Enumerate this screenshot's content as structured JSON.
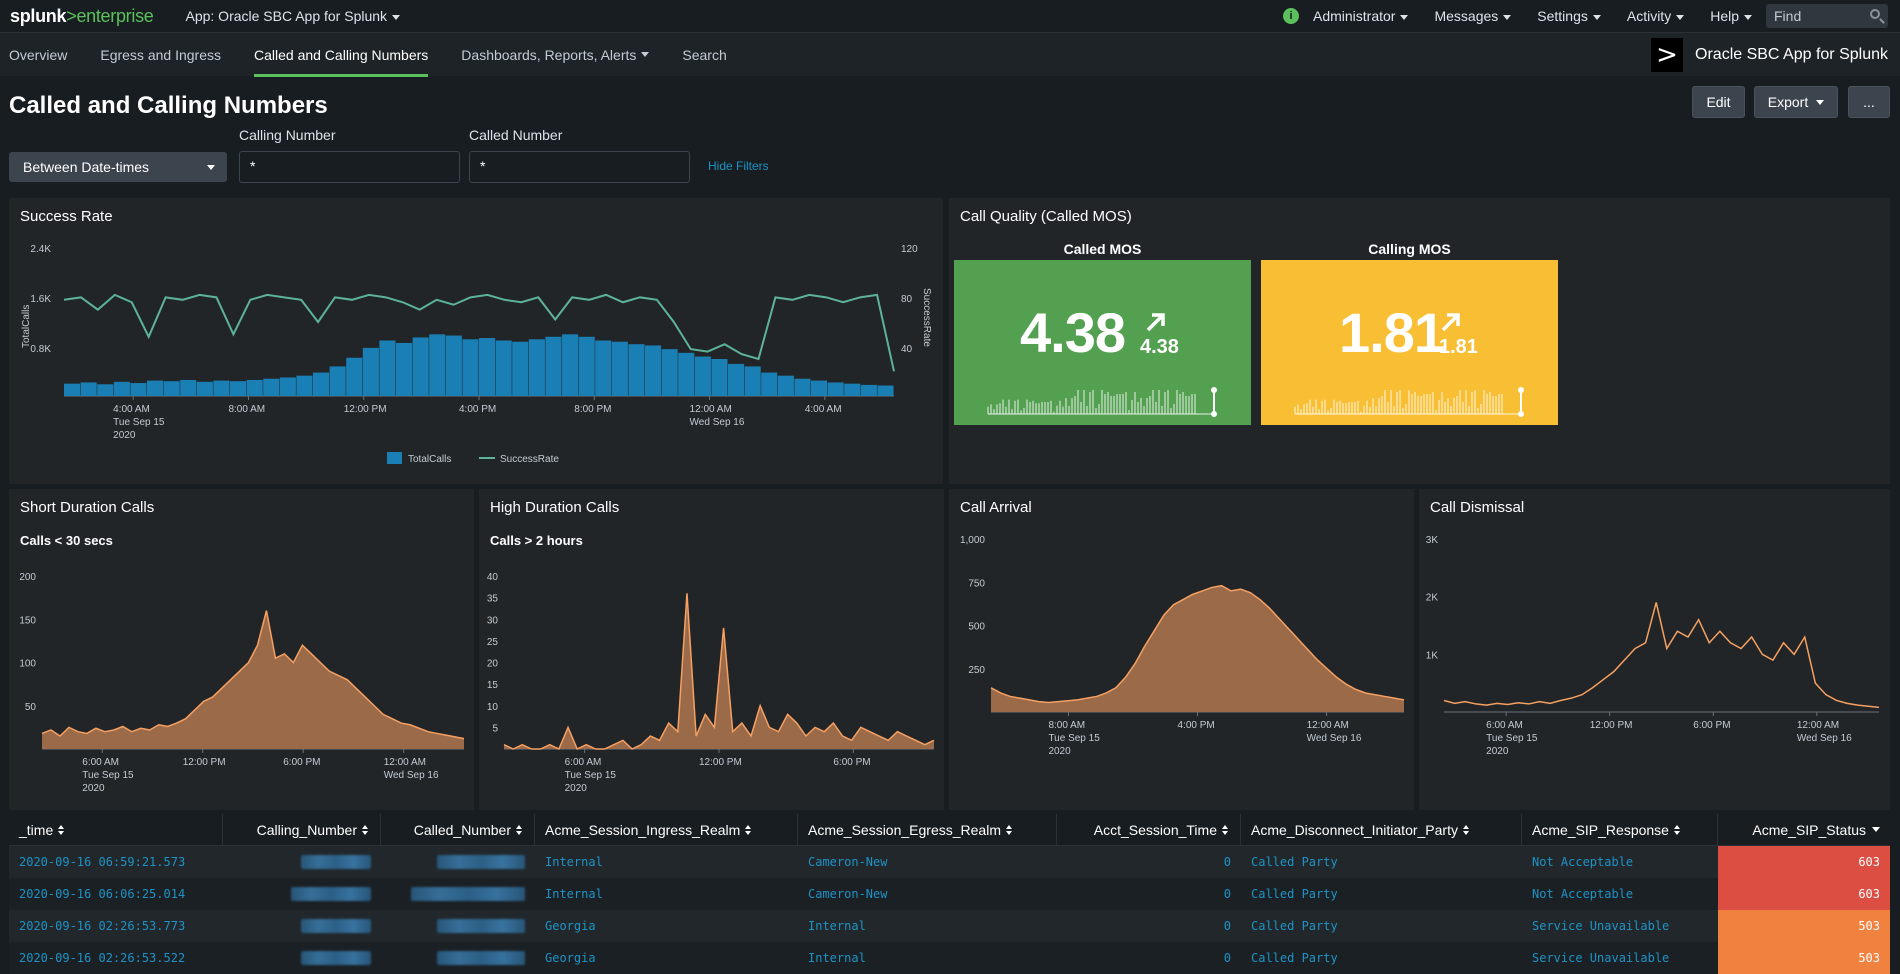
{
  "topbar": {
    "logo_main": "splunk",
    "logo_sep": ">",
    "logo_sub": "enterprise",
    "app_label": "App: Oracle SBC App for Splunk",
    "menus": [
      "Administrator",
      "Messages",
      "Settings",
      "Activity",
      "Help"
    ],
    "find_placeholder": "Find"
  },
  "appnav": {
    "items": [
      "Overview",
      "Egress and Ingress",
      "Called and Calling Numbers",
      "Dashboards, Reports, Alerts",
      "Search"
    ],
    "active": "Called and Calling Numbers",
    "app_title": "Oracle SBC App for Splunk"
  },
  "page": {
    "title": "Called and Calling Numbers",
    "edit_label": "Edit",
    "export_label": "Export",
    "more_label": "..."
  },
  "filters": {
    "time_label": "Between Date-times",
    "calling_label": "Calling Number",
    "calling_value": "*",
    "called_label": "Called Number",
    "called_value": "*",
    "hide_label": "Hide Filters"
  },
  "panels": {
    "success_rate": {
      "title": "Success Rate"
    },
    "call_quality": {
      "title": "Call Quality (Called MOS)",
      "called_label": "Called MOS",
      "called_value": "4.38",
      "called_delta": "4.38",
      "called_color": "#53a051",
      "calling_label": "Calling MOS",
      "calling_value": "1.81",
      "calling_delta": "1.81",
      "calling_color": "#f8be34"
    },
    "short_duration": {
      "title": "Short Duration Calls",
      "subtitle": "Calls < 30 secs"
    },
    "high_duration": {
      "title": "High Duration Calls",
      "subtitle": "Calls > 2 hours"
    },
    "call_arrival": {
      "title": "Call Arrival"
    },
    "call_dismissal": {
      "title": "Call Dismissal"
    }
  },
  "chart_data": [
    {
      "type": "line",
      "title": "Success Rate",
      "ylabel": "TotalCalls",
      "y2label": "SuccessRate",
      "yticks": [
        "2.4K",
        "1.6K",
        "0.8K"
      ],
      "y2ticks": [
        "120",
        "80",
        "40"
      ],
      "xticks": [
        {
          "l1": "4:00 AM",
          "l2": "Tue Sep 15",
          "l3": "2020"
        },
        {
          "l1": "8:00 AM",
          "l2": "",
          "l3": ""
        },
        {
          "l1": "12:00 PM",
          "l2": "",
          "l3": ""
        },
        {
          "l1": "4:00 PM",
          "l2": "",
          "l3": ""
        },
        {
          "l1": "8:00 PM",
          "l2": "",
          "l3": ""
        },
        {
          "l1": "12:00 AM",
          "l2": "Wed Sep 16",
          "l3": ""
        },
        {
          "l1": "4:00 AM",
          "l2": "",
          "l3": ""
        }
      ],
      "series": [
        {
          "name": "TotalCalls",
          "color": "#1a7fb4",
          "values": [
            200,
            220,
            190,
            230,
            210,
            250,
            240,
            260,
            230,
            250,
            240,
            260,
            280,
            300,
            330,
            380,
            480,
            620,
            780,
            900,
            860,
            950,
            1000,
            980,
            920,
            940,
            900,
            880,
            920,
            960,
            1000,
            960,
            900,
            880,
            840,
            820,
            760,
            700,
            640,
            600,
            520,
            480,
            380,
            330,
            280,
            250,
            220,
            200,
            180,
            170
          ]
        },
        {
          "name": "SuccessRate",
          "color": "#5db39a",
          "values": [
            78,
            80,
            70,
            82,
            76,
            48,
            80,
            78,
            82,
            80,
            50,
            78,
            82,
            80,
            78,
            60,
            80,
            78,
            82,
            80,
            76,
            70,
            78,
            74,
            80,
            82,
            78,
            76,
            80,
            62,
            80,
            78,
            82,
            76,
            80,
            78,
            60,
            38,
            36,
            42,
            34,
            30,
            80,
            78,
            82,
            80,
            76,
            80,
            82,
            20
          ]
        }
      ],
      "legend": "bottom"
    },
    {
      "type": "area",
      "title": "Short Duration Calls",
      "yticks": [
        200,
        150,
        100,
        50
      ],
      "ylim": [
        0,
        200
      ],
      "xticks": [
        {
          "l1": "6:00 AM",
          "l2": "Tue Sep 15",
          "l3": "2020"
        },
        {
          "l1": "12:00 PM",
          "l2": "",
          "l3": ""
        },
        {
          "l1": "6:00 PM",
          "l2": "",
          "l3": ""
        },
        {
          "l1": "12:00 AM",
          "l2": "Wed Sep 16",
          "l3": ""
        }
      ],
      "values": [
        18,
        22,
        15,
        25,
        20,
        18,
        24,
        20,
        22,
        26,
        20,
        24,
        22,
        28,
        26,
        30,
        35,
        45,
        55,
        60,
        70,
        80,
        90,
        100,
        120,
        160,
        105,
        110,
        100,
        120,
        110,
        100,
        90,
        85,
        80,
        70,
        60,
        50,
        40,
        35,
        30,
        28,
        24,
        20,
        18,
        16,
        14,
        12
      ]
    },
    {
      "type": "area",
      "title": "High Duration Calls",
      "yticks": [
        40,
        35,
        30,
        25,
        20,
        15,
        10,
        5
      ],
      "ylim": [
        0,
        40
      ],
      "xticks": [
        {
          "l1": "6:00 AM",
          "l2": "Tue Sep 15",
          "l3": "2020"
        },
        {
          "l1": "12:00 PM",
          "l2": "",
          "l3": ""
        },
        {
          "l1": "6:00 PM",
          "l2": "",
          "l3": ""
        }
      ],
      "values": [
        1,
        0,
        1,
        0,
        0,
        1,
        0,
        5,
        0,
        1,
        0,
        0,
        1,
        2,
        0,
        1,
        3,
        2,
        6,
        4,
        36,
        3,
        8,
        5,
        28,
        4,
        6,
        3,
        10,
        5,
        4,
        8,
        6,
        3,
        5,
        4,
        6,
        3,
        2,
        5,
        4,
        3,
        2,
        4,
        3,
        2,
        1,
        2
      ]
    },
    {
      "type": "area",
      "title": "Call Arrival",
      "yticks": [
        "1,000",
        "750",
        "500",
        "250"
      ],
      "ylim": [
        0,
        1000
      ],
      "xticks": [
        {
          "l1": "8:00 AM",
          "l2": "Tue Sep 15",
          "l3": "2020"
        },
        {
          "l1": "4:00 PM",
          "l2": "",
          "l3": ""
        },
        {
          "l1": "12:00 AM",
          "l2": "Wed Sep 16",
          "l3": ""
        }
      ],
      "values": [
        140,
        110,
        90,
        80,
        70,
        60,
        55,
        60,
        65,
        70,
        80,
        90,
        110,
        140,
        200,
        280,
        380,
        470,
        560,
        620,
        650,
        680,
        700,
        720,
        730,
        700,
        710,
        690,
        650,
        600,
        540,
        480,
        420,
        360,
        300,
        250,
        200,
        160,
        130,
        110,
        100,
        90,
        80,
        70
      ]
    },
    {
      "type": "line",
      "title": "Call Dismissal",
      "yticks": [
        "3K",
        "2K",
        "1K"
      ],
      "ylim": [
        0,
        3000
      ],
      "xticks": [
        {
          "l1": "6:00 AM",
          "l2": "Tue Sep 15",
          "l3": "2020"
        },
        {
          "l1": "12:00 PM",
          "l2": "",
          "l3": ""
        },
        {
          "l1": "6:00 PM",
          "l2": "",
          "l3": ""
        },
        {
          "l1": "12:00 AM",
          "l2": "Wed Sep 16",
          "l3": ""
        }
      ],
      "values": [
        200,
        150,
        180,
        140,
        120,
        150,
        130,
        160,
        140,
        180,
        150,
        200,
        240,
        300,
        420,
        560,
        700,
        900,
        1100,
        1200,
        1900,
        1100,
        1400,
        1300,
        1600,
        1200,
        1400,
        1200,
        1100,
        1300,
        1000,
        900,
        1200,
        1000,
        1300,
        500,
        300,
        200,
        150,
        120,
        100,
        80
      ]
    }
  ],
  "table": {
    "columns": [
      "_time",
      "Calling_Number",
      "Called_Number",
      "Acme_Session_Ingress_Realm",
      "Acme_Session_Egress_Realm",
      "Acct_Session_Time",
      "Acme_Disconnect_Initiator_Party",
      "Acme_SIP_Response",
      "Acme_SIP_Status"
    ],
    "rows": [
      {
        "time": "2020-09-16 06:59:21.573",
        "ingress": "Internal",
        "egress": "Cameron-New",
        "session_time": "0",
        "initiator": "Called Party",
        "response": "Not Acceptable",
        "status": "603",
        "status_color": "#dc4e41"
      },
      {
        "time": "2020-09-16 06:06:25.014",
        "ingress": "Internal",
        "egress": "Cameron-New",
        "session_time": "0",
        "initiator": "Called Party",
        "response": "Not Acceptable",
        "status": "603",
        "status_color": "#dc4e41"
      },
      {
        "time": "2020-09-16 02:26:53.773",
        "ingress": "Georgia",
        "egress": "Internal",
        "session_time": "0",
        "initiator": "Called Party",
        "response": "Service Unavailable",
        "status": "503",
        "status_color": "#f1813f"
      },
      {
        "time": "2020-09-16 02:26:53.522",
        "ingress": "Georgia",
        "egress": "Internal",
        "session_time": "0",
        "initiator": "Called Party",
        "response": "Service Unavailable",
        "status": "503",
        "status_color": "#f1813f"
      }
    ]
  }
}
